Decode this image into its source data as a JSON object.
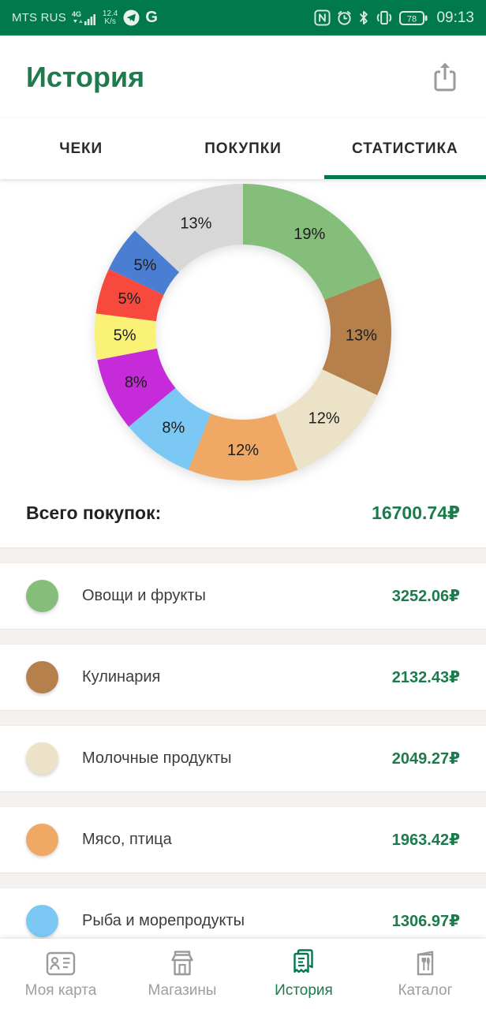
{
  "colors": {
    "brand_green": "#007A4D",
    "accent_green": "#1B7B4B",
    "underline_green": "#00784B",
    "inactive_gray": "#9E9E9E",
    "gap_gray": "#F4F1EE"
  },
  "status_bar": {
    "carrier": "MTS RUS",
    "network_badge": "4G",
    "speed_line1": "12.4",
    "speed_line2": "K/s",
    "battery_percent": "78",
    "time": "09:13",
    "icons": [
      "signal-bars-icon",
      "telegram-icon",
      "google-icon",
      "nfc-icon",
      "alarm-icon",
      "bluetooth-icon",
      "vibrate-icon",
      "battery-icon"
    ]
  },
  "header": {
    "title": "История",
    "icons": [
      "share-icon"
    ]
  },
  "tabs": [
    {
      "label": "ЧЕКИ",
      "active": false
    },
    {
      "label": "ПОКУПКИ",
      "active": false
    },
    {
      "label": "СТАТИСТИКА",
      "active": true
    }
  ],
  "chart_data": {
    "type": "pie",
    "donut": true,
    "start_angle_deg": -90,
    "direction": "clockwise",
    "outer_radius": 188,
    "inner_radius": 111,
    "label_radius": 150,
    "label_format": "percent",
    "segments": [
      {
        "percent": 19,
        "color": "#85BE7B"
      },
      {
        "percent": 13,
        "color": "#B5804B"
      },
      {
        "percent": 12,
        "color": "#EBE2C7"
      },
      {
        "percent": 12,
        "color": "#F0A865"
      },
      {
        "percent": 8,
        "color": "#7BC8F5"
      },
      {
        "percent": 8,
        "color": "#C62BD9"
      },
      {
        "percent": 5,
        "color": "#FAF276"
      },
      {
        "percent": 5,
        "color": "#F7493E"
      },
      {
        "percent": 5,
        "color": "#4A7ED2"
      },
      {
        "percent": 13,
        "color": "#D7D7D7"
      }
    ]
  },
  "totals": {
    "label": "Всего покупок:",
    "value": "16700.74₽"
  },
  "categories": [
    {
      "name": "Овощи и фрукты",
      "amount": "3252.06₽",
      "color": "#85BE7B"
    },
    {
      "name": "Кулинария",
      "amount": "2132.43₽",
      "color": "#B5804B"
    },
    {
      "name": "Молочные продукты",
      "amount": "2049.27₽",
      "color": "#EBE2C7"
    },
    {
      "name": "Мясо, птица",
      "amount": "1963.42₽",
      "color": "#F0A865"
    },
    {
      "name": "Рыба и морепродукты",
      "amount": "1306.97₽",
      "color": "#7BC8F5"
    }
  ],
  "bottom_nav": [
    {
      "label": "Моя карта",
      "icon": "card-icon",
      "active": false
    },
    {
      "label": "Магазины",
      "icon": "store-icon",
      "active": false
    },
    {
      "label": "История",
      "icon": "receipt-icon",
      "active": true
    },
    {
      "label": "Каталог",
      "icon": "catalog-icon",
      "active": false
    }
  ]
}
